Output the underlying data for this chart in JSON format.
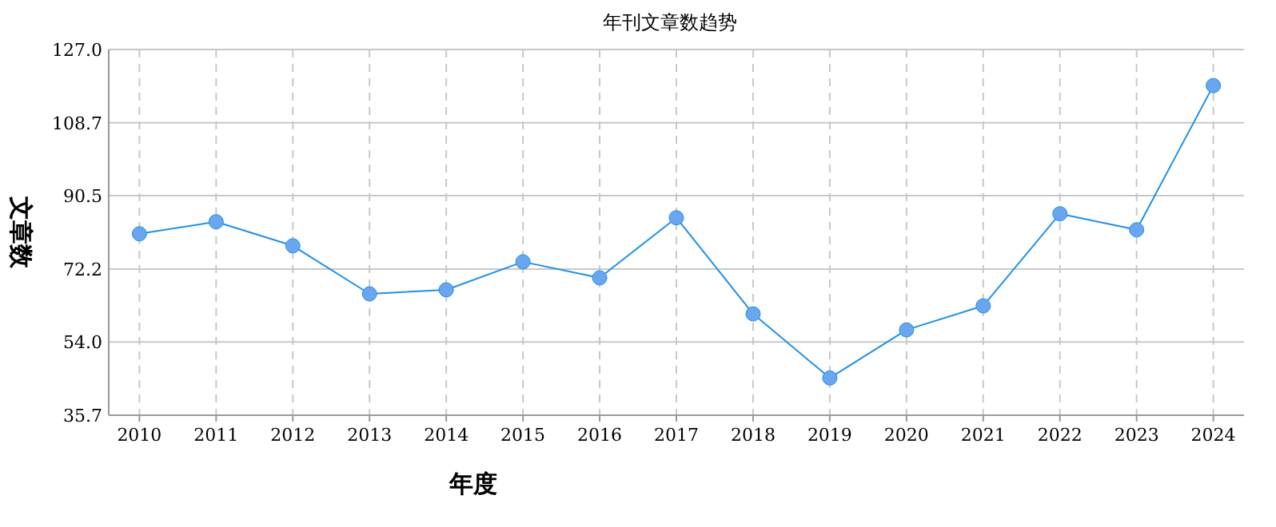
{
  "chart_data": {
    "type": "line",
    "title": "年刊文章数趋势",
    "xlabel": "年度",
    "ylabel": "文章数",
    "categories": [
      "2010",
      "2011",
      "2012",
      "2013",
      "2014",
      "2015",
      "2016",
      "2017",
      "2018",
      "2019",
      "2020",
      "2021",
      "2022",
      "2023",
      "2024"
    ],
    "series": [
      {
        "color": "#1e90e8",
        "values": [
          81,
          84,
          78,
          66,
          67,
          74,
          70,
          85,
          61,
          45,
          57,
          63,
          86,
          82,
          118
        ]
      }
    ],
    "ylim": [
      35.7,
      127.0
    ],
    "yticks": [
      {
        "value": 35.7,
        "label": "35.7"
      },
      {
        "value": 54.0,
        "label": "54.0"
      },
      {
        "value": 72.2,
        "label": "72.2"
      },
      {
        "value": 90.5,
        "label": "90.5"
      },
      {
        "value": 108.7,
        "label": "108.7"
      },
      {
        "value": 127.0,
        "label": "127.0"
      }
    ],
    "grid": true,
    "marker": "circle",
    "line_style": "solid"
  }
}
